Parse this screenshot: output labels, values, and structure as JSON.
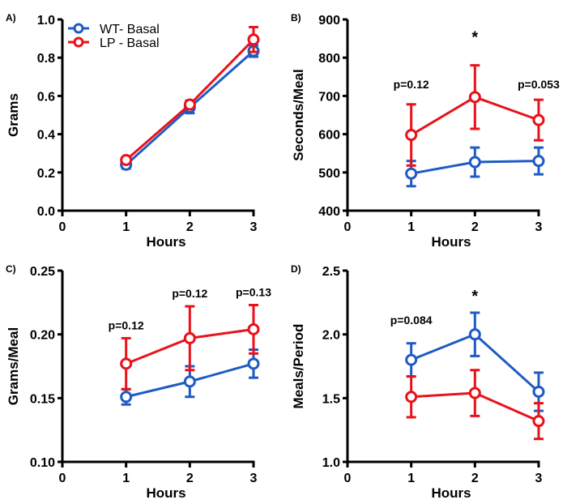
{
  "colors": {
    "WT": "#1f5bc4",
    "LP": "#e8121b",
    "axis": "#000000"
  },
  "legend": [
    "WT- Basal",
    "LP - Basal"
  ],
  "chart_data": [
    {
      "type": "line",
      "panel": "A)",
      "xlabel": "Hours",
      "ylabel": "Grams",
      "x": [
        1,
        2,
        3
      ],
      "xlim": [
        0,
        3
      ],
      "xticks": [
        "0",
        "1",
        "2",
        "3"
      ],
      "ylim": [
        0,
        1.0
      ],
      "yticks": [
        "0.0",
        "0.2",
        "0.4",
        "0.6",
        "0.8",
        "1.0"
      ],
      "legend_position": "top-left",
      "series": [
        {
          "name": "WT- Basal",
          "values": [
            0.24,
            0.54,
            0.835
          ],
          "err": [
            0.02,
            0.03,
            0.03
          ]
        },
        {
          "name": "LP - Basal",
          "values": [
            0.265,
            0.555,
            0.895
          ],
          "err": [
            0.01,
            0.02,
            0.065
          ]
        }
      ],
      "annotations": []
    },
    {
      "type": "line",
      "panel": "B)",
      "xlabel": "Hours",
      "ylabel": "Seconds/Meal",
      "x": [
        1,
        2,
        3
      ],
      "xlim": [
        0,
        3
      ],
      "xticks": [
        "0",
        "1",
        "2",
        "3"
      ],
      "ylim": [
        400,
        900
      ],
      "yticks": [
        "400",
        "500",
        "600",
        "700",
        "800",
        "900"
      ],
      "series": [
        {
          "name": "WT- Basal",
          "values": [
            497,
            527,
            530
          ],
          "err": [
            33,
            38,
            35
          ]
        },
        {
          "name": "LP - Basal",
          "values": [
            598,
            697,
            637
          ],
          "err": [
            80,
            83,
            53
          ]
        }
      ],
      "annotations": [
        {
          "x": 1,
          "y": 720,
          "text": "p=0.12"
        },
        {
          "x": 2,
          "y": 840,
          "text": "*"
        },
        {
          "x": 3,
          "y": 720,
          "text": "p=0.053"
        }
      ]
    },
    {
      "type": "line",
      "panel": "C)",
      "xlabel": "Hours",
      "ylabel": "Grams/Meal",
      "x": [
        1,
        2,
        3
      ],
      "xlim": [
        0,
        3
      ],
      "xticks": [
        "0",
        "1",
        "2",
        "3"
      ],
      "ylim": [
        0.1,
        0.25
      ],
      "yticks": [
        "0.10",
        "0.15",
        "0.20",
        "0.25"
      ],
      "series": [
        {
          "name": "WT- Basal",
          "values": [
            0.151,
            0.163,
            0.177
          ],
          "err": [
            0.006,
            0.012,
            0.011
          ]
        },
        {
          "name": "LP - Basal",
          "values": [
            0.177,
            0.197,
            0.204
          ],
          "err": [
            0.02,
            0.025,
            0.019
          ]
        }
      ],
      "annotations": [
        {
          "x": 1,
          "y": 0.204,
          "text": "p=0.12"
        },
        {
          "x": 2,
          "y": 0.229,
          "text": "p=0.12"
        },
        {
          "x": 3,
          "y": 0.23,
          "text": "p=0.13"
        }
      ]
    },
    {
      "type": "line",
      "panel": "D)",
      "xlabel": "Hours",
      "ylabel": "Meals/Period",
      "x": [
        1,
        2,
        3
      ],
      "xlim": [
        0,
        3
      ],
      "xticks": [
        "0",
        "1",
        "2",
        "3"
      ],
      "ylim": [
        1.0,
        2.5
      ],
      "yticks": [
        "1.0",
        "1.5",
        "2.0",
        "2.5"
      ],
      "series": [
        {
          "name": "WT- Basal",
          "values": [
            1.8,
            2.0,
            1.55
          ],
          "err": [
            0.13,
            0.17,
            0.15
          ]
        },
        {
          "name": "LP - Basal",
          "values": [
            1.51,
            1.54,
            1.32
          ],
          "err": [
            0.16,
            0.18,
            0.14
          ]
        }
      ],
      "annotations": [
        {
          "x": 1,
          "y": 2.08,
          "text": "p=0.084"
        },
        {
          "x": 2,
          "y": 2.26,
          "text": "*"
        }
      ]
    }
  ]
}
